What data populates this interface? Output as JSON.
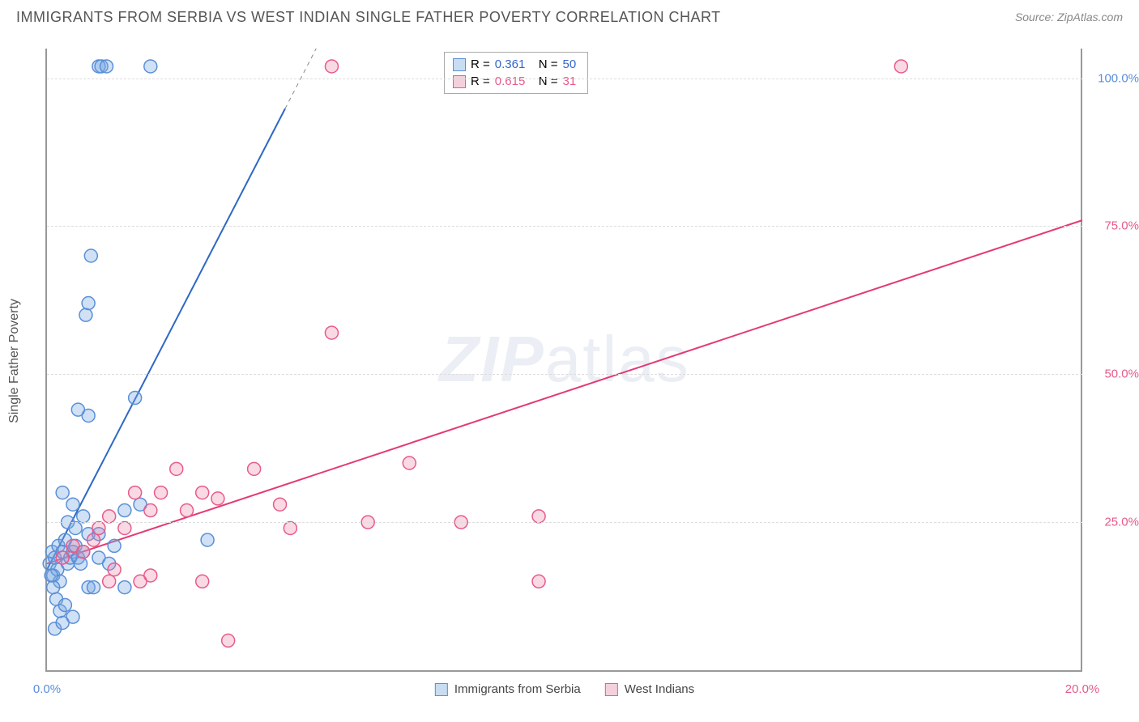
{
  "header": {
    "title": "IMMIGRANTS FROM SERBIA VS WEST INDIAN SINGLE FATHER POVERTY CORRELATION CHART",
    "source_label": "Source: ZipAtlas.com"
  },
  "chart": {
    "type": "scatter",
    "background_color": "#ffffff",
    "axis_color": "#999999",
    "grid_color": "#dddddd",
    "xlim": [
      0,
      20
    ],
    "ylim": [
      0,
      105
    ],
    "y_axis_title": "Single Father Poverty",
    "y_ticks": [
      {
        "v": 25,
        "label": "25.0%",
        "color": "#e85a8a"
      },
      {
        "v": 50,
        "label": "50.0%",
        "color": "#e85a8a"
      },
      {
        "v": 75,
        "label": "75.0%",
        "color": "#e85a8a"
      },
      {
        "v": 100,
        "label": "100.0%",
        "color": "#5a8fd8"
      }
    ],
    "x_ticks": [
      {
        "v": 0,
        "label": "0.0%",
        "color": "#5a8fd8"
      },
      {
        "v": 20,
        "label": "20.0%",
        "color": "#e85a8a"
      }
    ],
    "legend_top": {
      "rows": [
        {
          "swatch_fill": "#c8dcf2",
          "swatch_stroke": "#5a8fd8",
          "r_label": "R =",
          "r_val": "0.361",
          "r_color": "#3366cc",
          "n_label": "N =",
          "n_val": "50",
          "n_color": "#3366cc"
        },
        {
          "swatch_fill": "#f5d0dc",
          "swatch_stroke": "#e85a8a",
          "r_label": "R =",
          "r_val": "0.615",
          "r_color": "#e85a8a",
          "n_label": "N =",
          "n_val": "31",
          "n_color": "#e85a8a"
        }
      ]
    },
    "legend_bottom": {
      "items": [
        {
          "swatch_fill": "#c8dcf2",
          "swatch_stroke": "#5a8fd8",
          "label": "Immigrants from Serbia"
        },
        {
          "swatch_fill": "#f5d0dc",
          "swatch_stroke": "#e85a8a",
          "label": "West Indians"
        }
      ]
    },
    "marker_radius": 8,
    "marker_stroke_width": 1.5,
    "line_width": 2,
    "series": [
      {
        "name": "serbia",
        "fill": "rgba(120,170,225,0.35)",
        "stroke": "#5a8fd8",
        "trend": {
          "x1": 0,
          "y1": 17,
          "x2": 5.2,
          "y2": 105,
          "color": "#2d68c4",
          "dash_after_x": 4.6
        },
        "points": [
          [
            0.05,
            18
          ],
          [
            0.1,
            20
          ],
          [
            0.12,
            16
          ],
          [
            0.15,
            19
          ],
          [
            0.2,
            17
          ],
          [
            0.22,
            21
          ],
          [
            0.25,
            15
          ],
          [
            0.3,
            20
          ],
          [
            0.35,
            22
          ],
          [
            0.4,
            18
          ],
          [
            0.45,
            19
          ],
          [
            0.5,
            20
          ],
          [
            0.55,
            21
          ],
          [
            0.6,
            19
          ],
          [
            0.65,
            18
          ],
          [
            0.7,
            20
          ],
          [
            0.18,
            12
          ],
          [
            0.25,
            10
          ],
          [
            0.35,
            11
          ],
          [
            0.5,
            9
          ],
          [
            0.8,
            14
          ],
          [
            0.9,
            14
          ],
          [
            1.0,
            19
          ],
          [
            1.2,
            18
          ],
          [
            1.5,
            14
          ],
          [
            1.7,
            46
          ],
          [
            0.8,
            43
          ],
          [
            0.6,
            44
          ],
          [
            0.75,
            60
          ],
          [
            0.8,
            62
          ],
          [
            0.85,
            70
          ],
          [
            1.0,
            102
          ],
          [
            1.05,
            102
          ],
          [
            1.15,
            102
          ],
          [
            2.0,
            102
          ],
          [
            3.1,
            22
          ],
          [
            0.3,
            30
          ],
          [
            0.4,
            25
          ],
          [
            0.5,
            28
          ],
          [
            0.55,
            24
          ],
          [
            0.7,
            26
          ],
          [
            0.8,
            23
          ],
          [
            1.0,
            23
          ],
          [
            1.3,
            21
          ],
          [
            1.5,
            27
          ],
          [
            1.8,
            28
          ],
          [
            0.15,
            7
          ],
          [
            0.3,
            8
          ],
          [
            0.12,
            14
          ],
          [
            0.08,
            16
          ]
        ]
      },
      {
        "name": "west_indians",
        "fill": "rgba(235,130,165,0.3)",
        "stroke": "#e85a8a",
        "trend": {
          "x1": 0,
          "y1": 18,
          "x2": 20,
          "y2": 76,
          "color": "#e33a75"
        },
        "points": [
          [
            0.3,
            19
          ],
          [
            0.5,
            21
          ],
          [
            0.7,
            20
          ],
          [
            0.9,
            22
          ],
          [
            1.0,
            24
          ],
          [
            1.2,
            26
          ],
          [
            1.3,
            17
          ],
          [
            1.5,
            24
          ],
          [
            1.7,
            30
          ],
          [
            2.0,
            27
          ],
          [
            2.2,
            30
          ],
          [
            2.5,
            34
          ],
          [
            2.7,
            27
          ],
          [
            3.0,
            30
          ],
          [
            3.3,
            29
          ],
          [
            4.0,
            34
          ],
          [
            4.5,
            28
          ],
          [
            4.7,
            24
          ],
          [
            5.5,
            57
          ],
          [
            6.2,
            25
          ],
          [
            7.0,
            35
          ],
          [
            8.0,
            25
          ],
          [
            9.5,
            15
          ],
          [
            9.5,
            26
          ],
          [
            3.5,
            5
          ],
          [
            3.0,
            15
          ],
          [
            2.0,
            16
          ],
          [
            1.8,
            15
          ],
          [
            1.2,
            15
          ],
          [
            5.5,
            102
          ],
          [
            16.5,
            102
          ]
        ]
      }
    ],
    "watermark": {
      "zip": "ZIP",
      "atlas": "atlas"
    }
  }
}
